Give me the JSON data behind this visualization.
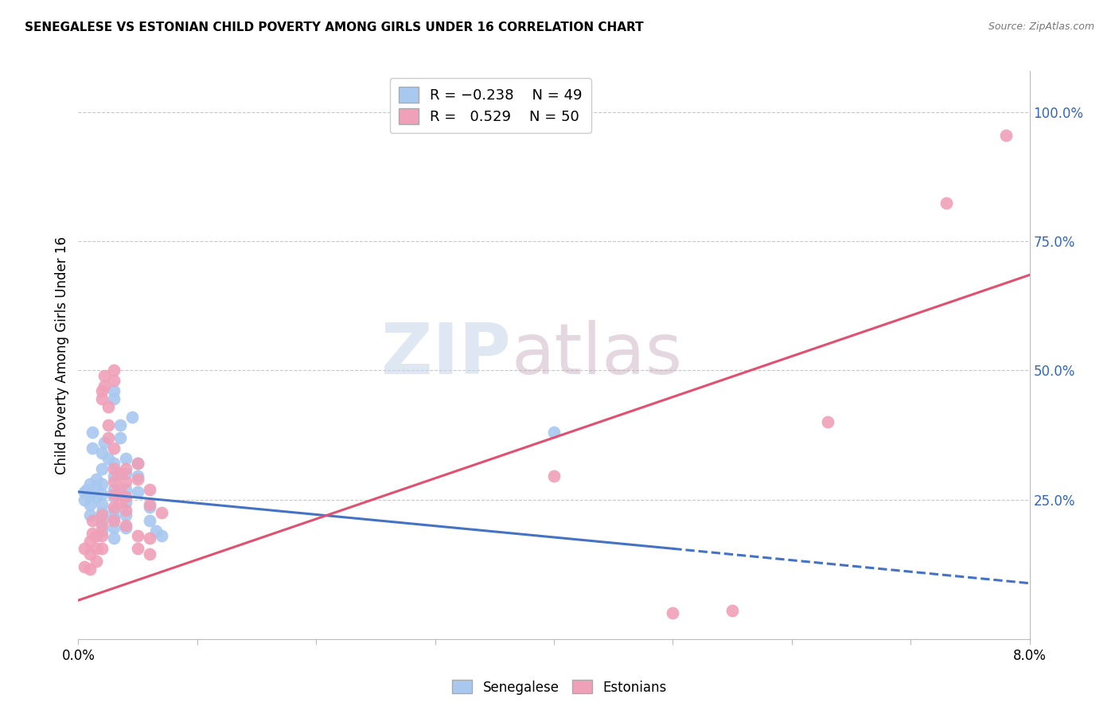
{
  "title": "SENEGALESE VS ESTONIAN CHILD POVERTY AMONG GIRLS UNDER 16 CORRELATION CHART",
  "source": "Source: ZipAtlas.com",
  "ylabel": "Child Poverty Among Girls Under 16",
  "xlim": [
    0.0,
    0.08
  ],
  "ylim": [
    -0.02,
    1.08
  ],
  "color_blue": "#A8C8F0",
  "color_pink": "#F0A0B8",
  "line_color_blue": "#4472C4",
  "line_color_pink": "#E05070",
  "background_color": "#FFFFFF",
  "watermark_zip": "ZIP",
  "watermark_atlas": "atlas",
  "blue_line_solid": [
    [
      0.0,
      0.265
    ],
    [
      0.05,
      0.155
    ]
  ],
  "blue_line_dash": [
    [
      0.05,
      0.155
    ],
    [
      0.08,
      0.088
    ]
  ],
  "pink_line": [
    [
      0.0,
      0.055
    ],
    [
      0.08,
      0.685
    ]
  ],
  "blue_data": [
    [
      0.0005,
      0.265
    ],
    [
      0.0005,
      0.25
    ],
    [
      0.0007,
      0.27
    ],
    [
      0.001,
      0.28
    ],
    [
      0.001,
      0.26
    ],
    [
      0.001,
      0.24
    ],
    [
      0.001,
      0.22
    ],
    [
      0.0012,
      0.38
    ],
    [
      0.0012,
      0.35
    ],
    [
      0.0015,
      0.29
    ],
    [
      0.0015,
      0.275
    ],
    [
      0.0015,
      0.255
    ],
    [
      0.002,
      0.34
    ],
    [
      0.002,
      0.31
    ],
    [
      0.002,
      0.28
    ],
    [
      0.002,
      0.26
    ],
    [
      0.002,
      0.24
    ],
    [
      0.002,
      0.225
    ],
    [
      0.002,
      0.21
    ],
    [
      0.002,
      0.19
    ],
    [
      0.0022,
      0.36
    ],
    [
      0.0025,
      0.33
    ],
    [
      0.003,
      0.46
    ],
    [
      0.003,
      0.445
    ],
    [
      0.003,
      0.32
    ],
    [
      0.003,
      0.295
    ],
    [
      0.003,
      0.27
    ],
    [
      0.003,
      0.255
    ],
    [
      0.003,
      0.23
    ],
    [
      0.003,
      0.215
    ],
    [
      0.003,
      0.195
    ],
    [
      0.003,
      0.175
    ],
    [
      0.0035,
      0.395
    ],
    [
      0.0035,
      0.37
    ],
    [
      0.004,
      0.33
    ],
    [
      0.004,
      0.3
    ],
    [
      0.004,
      0.27
    ],
    [
      0.004,
      0.245
    ],
    [
      0.004,
      0.22
    ],
    [
      0.004,
      0.195
    ],
    [
      0.0045,
      0.41
    ],
    [
      0.005,
      0.32
    ],
    [
      0.005,
      0.295
    ],
    [
      0.005,
      0.265
    ],
    [
      0.006,
      0.235
    ],
    [
      0.006,
      0.21
    ],
    [
      0.0065,
      0.19
    ],
    [
      0.007,
      0.18
    ],
    [
      0.04,
      0.38
    ]
  ],
  "pink_data": [
    [
      0.0005,
      0.155
    ],
    [
      0.0005,
      0.12
    ],
    [
      0.001,
      0.17
    ],
    [
      0.001,
      0.145
    ],
    [
      0.001,
      0.115
    ],
    [
      0.0012,
      0.21
    ],
    [
      0.0012,
      0.185
    ],
    [
      0.0015,
      0.18
    ],
    [
      0.0015,
      0.155
    ],
    [
      0.0015,
      0.13
    ],
    [
      0.002,
      0.46
    ],
    [
      0.002,
      0.445
    ],
    [
      0.002,
      0.22
    ],
    [
      0.002,
      0.2
    ],
    [
      0.002,
      0.18
    ],
    [
      0.002,
      0.155
    ],
    [
      0.0022,
      0.49
    ],
    [
      0.0022,
      0.47
    ],
    [
      0.0025,
      0.43
    ],
    [
      0.0025,
      0.395
    ],
    [
      0.0025,
      0.37
    ],
    [
      0.003,
      0.5
    ],
    [
      0.003,
      0.48
    ],
    [
      0.003,
      0.35
    ],
    [
      0.003,
      0.31
    ],
    [
      0.003,
      0.285
    ],
    [
      0.003,
      0.26
    ],
    [
      0.003,
      0.235
    ],
    [
      0.003,
      0.21
    ],
    [
      0.0035,
      0.3
    ],
    [
      0.0035,
      0.27
    ],
    [
      0.0035,
      0.245
    ],
    [
      0.004,
      0.31
    ],
    [
      0.004,
      0.285
    ],
    [
      0.004,
      0.255
    ],
    [
      0.004,
      0.23
    ],
    [
      0.004,
      0.2
    ],
    [
      0.005,
      0.32
    ],
    [
      0.005,
      0.29
    ],
    [
      0.005,
      0.18
    ],
    [
      0.005,
      0.155
    ],
    [
      0.006,
      0.27
    ],
    [
      0.006,
      0.24
    ],
    [
      0.006,
      0.175
    ],
    [
      0.006,
      0.145
    ],
    [
      0.007,
      0.225
    ],
    [
      0.04,
      0.295
    ],
    [
      0.05,
      0.03
    ],
    [
      0.055,
      0.035
    ],
    [
      0.063,
      0.4
    ],
    [
      0.073,
      0.825
    ],
    [
      0.078,
      0.955
    ]
  ]
}
